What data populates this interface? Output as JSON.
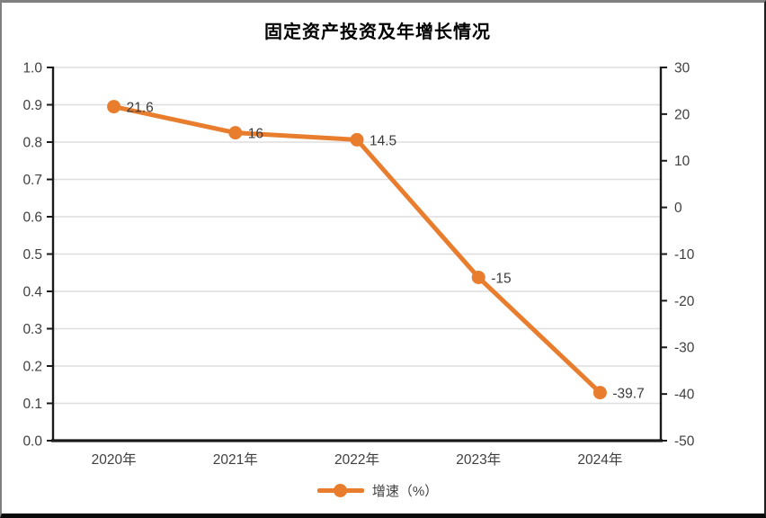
{
  "title": "固定资产投资及年增长情况",
  "chart_data": {
    "type": "line",
    "title": "固定资产投资及年增长情况",
    "categories": [
      "2020年",
      "2021年",
      "2022年",
      "2023年",
      "2024年"
    ],
    "series": [
      {
        "name": "增速（%）",
        "axis": "right",
        "values": [
          21.6,
          16,
          14.5,
          -15,
          -39.7
        ],
        "data_labels": [
          "21.6",
          "16",
          "14.5",
          "-15",
          "-39.7"
        ]
      }
    ],
    "axes": {
      "left": {
        "min": 0.0,
        "max": 1.0,
        "step": 0.1,
        "tick_labels": [
          "1.0",
          "0.9",
          "0.8",
          "0.7",
          "0.6",
          "0.5",
          "0.4",
          "0.3",
          "0.2",
          "0.1",
          "0.0"
        ]
      },
      "right": {
        "min": -50,
        "max": 30,
        "step": 10,
        "tick_labels": [
          "30",
          "20",
          "10",
          "0",
          "-10",
          "-20",
          "-30",
          "-40",
          "-50"
        ]
      }
    },
    "grid": true,
    "legend": {
      "position": "bottom",
      "entries": [
        "增速（%）"
      ]
    }
  },
  "colors": {
    "series": "#E87D2E",
    "grid": "#DEDEDE",
    "axis": "#1a1a1a",
    "tick_text": "#3f3f3f",
    "data_label_text": "#3a3a3a"
  }
}
